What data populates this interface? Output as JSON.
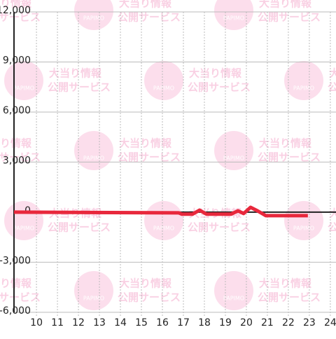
{
  "chart_data": {
    "type": "line",
    "x": [
      8.93,
      16.77,
      16.93,
      17.43,
      17.77,
      18.1,
      19.27,
      19.6,
      19.87,
      20.2,
      20.53,
      20.93,
      22.93
    ],
    "series": [
      {
        "color": "#e8283c",
        "values": [
          0,
          -40,
          -120,
          -120,
          120,
          -120,
          -120,
          80,
          -80,
          290,
          80,
          -210,
          -210
        ]
      }
    ],
    "xlim": [
      8.93,
      24.27
    ],
    "xticks": [
      10,
      11,
      12,
      13,
      14,
      15,
      16,
      17,
      18,
      19,
      20,
      21,
      22,
      23,
      24
    ],
    "ylim": [
      -6300,
      12000
    ],
    "yticks": [
      {
        "value": -6000,
        "label": "-6,000"
      },
      {
        "value": -3000,
        "label": "-3,000"
      },
      0,
      {
        "value": 3000,
        "label": "3,000"
      },
      {
        "value": 6000,
        "label": "6,000"
      },
      {
        "value": 9000,
        "label": "9,000"
      },
      {
        "value": 12000,
        "label": "12,000"
      }
    ],
    "grid": true
  },
  "watermark": {
    "logo": "PAPIMO",
    "line1": "大当り情報",
    "line2": "公開サービス"
  }
}
